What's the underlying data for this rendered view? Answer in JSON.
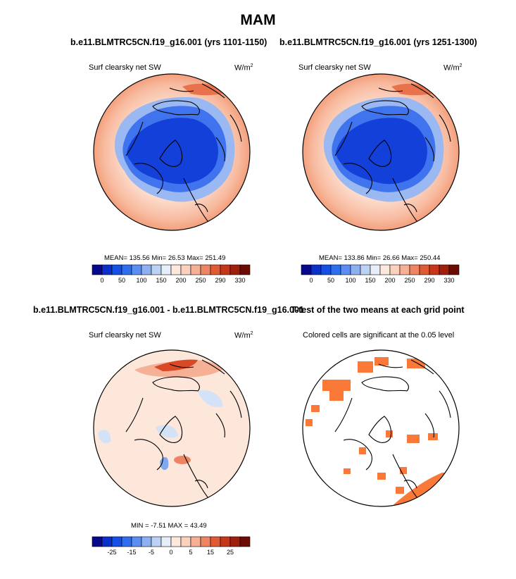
{
  "page_title": "MAM",
  "panels": [
    {
      "title": "b.e11.BLMTRC5CN.f19_g16.001 (yrs 1101-1150)",
      "variable": "Surf clearsky net SW",
      "units_base": "W/m",
      "units_exp": "2",
      "stats": "MEAN= 135.56  Min=  26.53  Max= 251.49"
    },
    {
      "title": "b.e11.BLMTRC5CN.f19_g16.001 (yrs 1251-1300)",
      "variable": "Surf clearsky net SW",
      "units_base": "W/m",
      "units_exp": "2",
      "stats": "MEAN= 133.86  Min=  26.66  Max= 250.44"
    },
    {
      "title": "b.e11.BLMTRC5CN.f19_g16.001 - b.e11.BLMTRC5CN.f19_g16.001",
      "variable": "Surf clearsky net SW",
      "units_base": "W/m",
      "units_exp": "2",
      "stats": "MIN =  -7.51 MAX =  43.49"
    },
    {
      "title": "T-test of the two means at each grid point",
      "variable": "Colored cells are significant at the 0.05 level"
    }
  ],
  "chart_data": [
    {
      "type": "heatmap",
      "projection": "north-polar-stereographic",
      "title": "b.e11.BLMTRC5CN.f19_g16.001 (yrs 1101-1150)",
      "variable": "Surf clearsky net SW",
      "units": "W/m2",
      "mean": 135.56,
      "min": 26.53,
      "max": 251.49,
      "colorbar_levels": [
        0,
        25,
        50,
        75,
        100,
        125,
        150,
        175,
        200,
        225,
        250,
        270,
        290,
        310,
        330
      ],
      "colorbar_labels": [
        "0",
        "50",
        "100",
        "150",
        "200",
        "250",
        "290",
        "330"
      ],
      "colors": [
        "#08088c",
        "#0a30c8",
        "#1450e6",
        "#2e6ef0",
        "#5a8ef2",
        "#8cb0f2",
        "#bcd2f4",
        "#e6eefa",
        "#fde8dc",
        "#fbd0bc",
        "#f6b096",
        "#ee8462",
        "#e05a34",
        "#c8361a",
        "#a01e0e",
        "#6c0a04"
      ],
      "pattern": "low values (blue, 25-100) over the Arctic Ocean and Greenland; high values (salmon to red, 200-250) over the lower latitude ring"
    },
    {
      "type": "heatmap",
      "projection": "north-polar-stereographic",
      "title": "b.e11.BLMTRC5CN.f19_g16.001 (yrs 1251-1300)",
      "variable": "Surf clearsky net SW",
      "units": "W/m2",
      "mean": 133.86,
      "min": 26.66,
      "max": 250.44,
      "colorbar_levels": [
        0,
        25,
        50,
        75,
        100,
        125,
        150,
        175,
        200,
        225,
        250,
        270,
        290,
        310,
        330
      ],
      "colorbar_labels": [
        "0",
        "50",
        "100",
        "150",
        "200",
        "250",
        "290",
        "330"
      ],
      "colors": [
        "#08088c",
        "#0a30c8",
        "#1450e6",
        "#2e6ef0",
        "#5a8ef2",
        "#8cb0f2",
        "#bcd2f4",
        "#e6eefa",
        "#fde8dc",
        "#fbd0bc",
        "#f6b096",
        "#ee8462",
        "#e05a34",
        "#c8361a",
        "#a01e0e",
        "#6c0a04"
      ],
      "pattern": "nearly identical to the first period"
    },
    {
      "type": "heatmap",
      "projection": "north-polar-stereographic",
      "title": "b.e11.BLMTRC5CN.f19_g16.001 - b.e11.BLMTRC5CN.f19_g16.001",
      "variable": "Surf clearsky net SW",
      "units": "W/m2",
      "min": -7.51,
      "max": 43.49,
      "colorbar_levels": [
        -30,
        -25,
        -20,
        -15,
        -10,
        -5,
        -2.5,
        0,
        2.5,
        5,
        10,
        15,
        20,
        25,
        30
      ],
      "colorbar_labels": [
        "-25",
        "-15",
        "-5",
        "0",
        "5",
        "15",
        "25"
      ],
      "colors": [
        "#08088c",
        "#0a30c8",
        "#1450e6",
        "#2e6ef0",
        "#5a8ef2",
        "#8cb0f2",
        "#bcd2f4",
        "#e6eefa",
        "#fde8dc",
        "#fbd0bc",
        "#f6b096",
        "#ee8462",
        "#e05a34",
        "#c8361a",
        "#a01e0e",
        "#6c0a04"
      ],
      "pattern": "mostly small positive differences; strong positive (red, up to 43.49) band near the top of the map and a smaller maximum near the center; small negative (light blue) patches"
    },
    {
      "type": "heatmap",
      "projection": "north-polar-stereographic",
      "title": "T-test of the two means at each grid point",
      "subtitle": "Colored cells are significant at the 0.05 level",
      "significant_color": "#fa7838",
      "pattern": "scattered significant grid cells, concentrated along the top of the map and the lower right"
    }
  ]
}
